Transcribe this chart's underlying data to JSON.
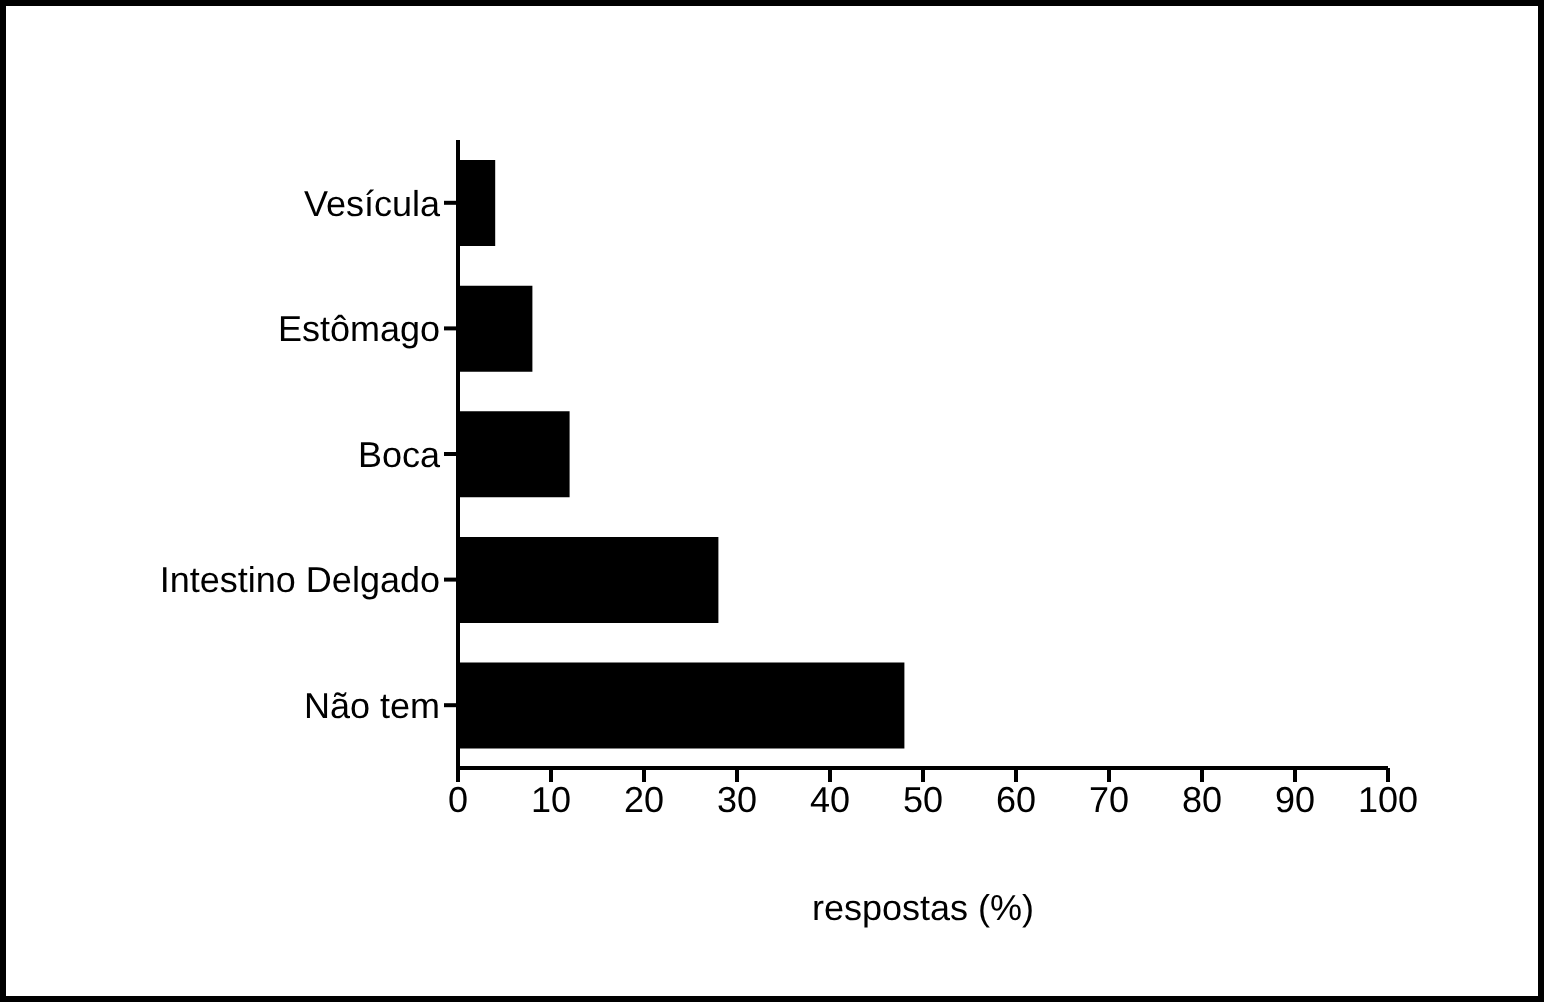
{
  "chart_data": {
    "type": "bar",
    "orientation": "horizontal",
    "xlabel": "respostas (%)",
    "categories": [
      "Vesícula",
      "Estômago",
      "Boca",
      "Intestino Delgado",
      "Não tem"
    ],
    "values": [
      4,
      8,
      12,
      28,
      48
    ],
    "color": "#000000",
    "xlim": [
      0,
      100
    ],
    "xticks": [
      0,
      10,
      20,
      30,
      40,
      50,
      60,
      70,
      80,
      90,
      100
    ],
    "grid": false,
    "legend": false
  }
}
